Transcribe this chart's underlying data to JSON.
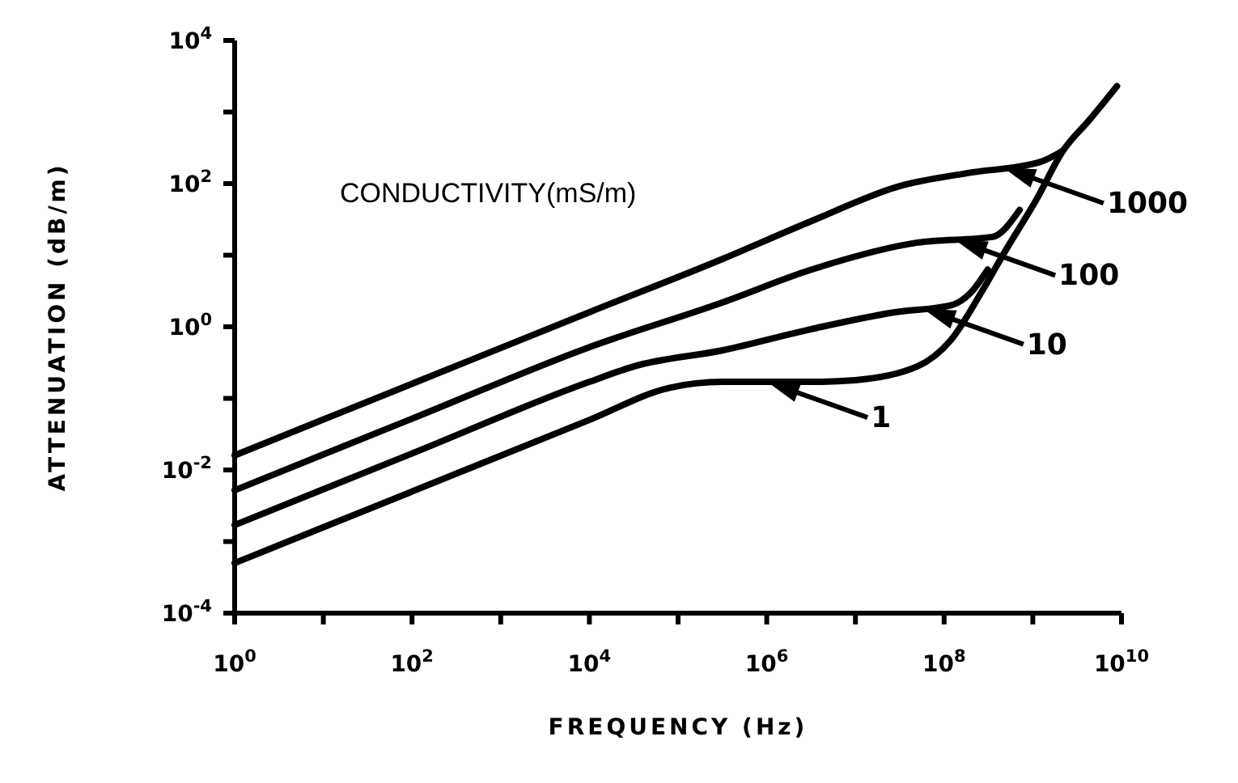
{
  "chart_data": {
    "type": "line",
    "xlabel": "FREQUENCY (Hz)",
    "ylabel": "ATTENUATION (dB/m)",
    "log": "xy",
    "grid": false,
    "legend": "right",
    "marker": "none",
    "line_style": "solid",
    "xlim": [
      1,
      10000000000
    ],
    "ylim": [
      0.0001,
      10000
    ],
    "xticks": [
      {
        "value": 1,
        "label": "10$^{0}$"
      },
      {
        "value": 10,
        "label": null
      },
      {
        "value": 100,
        "label": "10$^{2}$"
      },
      {
        "value": 1000,
        "label": null
      },
      {
        "value": 10000,
        "label": "10$^{4}$"
      },
      {
        "value": 100000,
        "label": null
      },
      {
        "value": 1000000,
        "label": "10$^{6}$"
      },
      {
        "value": 10000000,
        "label": null
      },
      {
        "value": 100000000,
        "label": "10$^{8}$"
      },
      {
        "value": 1000000000,
        "label": null
      },
      {
        "value": 10000000000,
        "label": "10$^{10}$"
      }
    ],
    "yticks": [
      {
        "value": 0.0001,
        "label": "10$^{-4}$"
      },
      {
        "value": 0.001,
        "label": null
      },
      {
        "value": 0.01,
        "label": "10$^{-2}$"
      },
      {
        "value": 0.1,
        "label": null
      },
      {
        "value": 1,
        "label": "10$^{0}$"
      },
      {
        "value": 10,
        "label": null
      },
      {
        "value": 100,
        "label": "10$^{2}$"
      },
      {
        "value": 1000,
        "label": null
      },
      {
        "value": 10000,
        "label": "10$^{4}$"
      }
    ],
    "series": [
      {
        "name": "1",
        "color": "#000000",
        "x": [
          1,
          100,
          10000,
          79000,
          320000,
          3200000,
          10000000,
          50000000,
          120000000,
          270000000,
          470000000,
          1100000000,
          2200000000,
          4400000000,
          8900000000
        ],
        "values": [
          0.0005,
          0.005,
          0.05,
          0.14,
          0.17,
          0.17,
          0.18,
          0.28,
          0.66,
          3.2,
          10.5,
          60,
          290,
          790,
          2300
        ]
      },
      {
        "name": "10",
        "color": "#000000",
        "x": [
          1,
          100,
          10000,
          32000,
          320000,
          3200000,
          28000000,
          120000000,
          200000000,
          310000000
        ],
        "values": [
          0.0017,
          0.017,
          0.17,
          0.28,
          0.47,
          0.93,
          1.6,
          2.0,
          3.0,
          6.3
        ]
      },
      {
        "name": "100",
        "color": "#000000",
        "x": [
          1,
          100,
          10000,
          320000,
          3200000,
          50000000,
          350000000,
          710000000
        ],
        "values": [
          0.0052,
          0.052,
          0.52,
          2.2,
          6.3,
          15,
          18,
          43
        ]
      },
      {
        "name": "1000",
        "color": "#000000",
        "x": [
          1,
          100,
          10000,
          320000,
          3200000,
          32000000,
          180000000,
          1200000000,
          2200000000
        ],
        "values": [
          0.016,
          0.16,
          1.6,
          8.9,
          30,
          93,
          140,
          200,
          290
        ]
      }
    ],
    "annotations": [
      "CONDUCTIVITY(mS/m)"
    ]
  }
}
